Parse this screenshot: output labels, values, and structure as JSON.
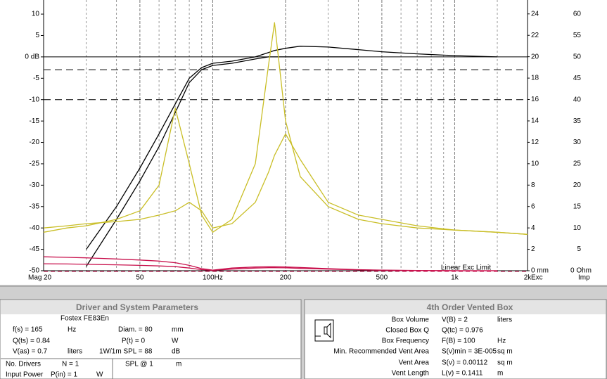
{
  "chart_data": {
    "type": "line",
    "xscale": "log",
    "xlim": [
      20,
      2000
    ],
    "ylim": [
      -50,
      13.3
    ],
    "y2lim": [
      0,
      25.3
    ],
    "y3lim": [
      0,
      63.3
    ],
    "xticks": [
      20,
      50,
      {
        "value": 100,
        "label": "100Hz"
      },
      200,
      500,
      {
        "value": 1000,
        "label": "1k"
      },
      {
        "value": 2000,
        "label": "2k"
      }
    ],
    "minor_xticks": [
      30,
      40,
      60,
      70,
      80,
      90,
      300,
      400,
      600,
      700,
      800,
      900,
      1500
    ],
    "yticks": [
      10,
      5,
      {
        "value": 0,
        "label": "0 dB"
      },
      -5,
      -10,
      -15,
      -20,
      -25,
      -30,
      -35,
      -40,
      -45,
      -50
    ],
    "y2ticks": [
      {
        "value": 0,
        "label": "0 mm"
      },
      2,
      4,
      6,
      8,
      10,
      12,
      14,
      16,
      18,
      20,
      22,
      24
    ],
    "y3ticks": [
      {
        "value": 0,
        "label": "0 Ohm"
      },
      5,
      10,
      15,
      20,
      25,
      30,
      35,
      40,
      45,
      50,
      55,
      60
    ],
    "ylabel": "Mag",
    "y2label": "Exc",
    "y3label": "Imp",
    "ref_lines": [
      -3,
      -10
    ],
    "exc_limit": {
      "value": 0,
      "label": "Linear Exc Limit",
      "color": "#c8104c"
    },
    "x": [
      20,
      25,
      30,
      40,
      50,
      60,
      70,
      80,
      90,
      100,
      120,
      150,
      170,
      180,
      200,
      230,
      300,
      400,
      500,
      700,
      1000,
      1500,
      2000
    ],
    "series": [
      {
        "color": "#000000",
        "axis": "y",
        "values": [
          null,
          null,
          -45,
          -35,
          -26,
          -18,
          -11,
          -5,
          -2.5,
          -1.5,
          -1,
          0,
          1,
          1.5,
          2,
          2.5,
          2.3,
          1.7,
          1.2,
          0.7,
          0.3,
          0,
          null
        ]
      },
      {
        "color": "#000000",
        "axis": "y",
        "values": [
          null,
          null,
          -49,
          -38,
          -29,
          -21,
          -13,
          -6,
          -3,
          -2,
          -1.5,
          -0.5,
          0,
          0,
          0,
          0,
          0,
          0,
          null,
          null,
          null,
          null,
          null
        ]
      },
      {
        "color": "#c9be26",
        "axis": "y3",
        "values": [
          9,
          10,
          10.5,
          12,
          14,
          20,
          38,
          25,
          13,
          9,
          12,
          25,
          48,
          58,
          35,
          22,
          15,
          12,
          11,
          10,
          9.5,
          9,
          8.5
        ]
      },
      {
        "color": "#c9be26",
        "axis": "y3",
        "values": [
          10,
          10.5,
          11,
          11.5,
          12,
          13,
          14,
          16,
          14,
          10,
          11,
          16,
          23,
          27,
          32,
          26,
          16,
          13,
          12,
          10.5,
          9.5,
          9,
          8.5
        ]
      },
      {
        "color": "#c8104c",
        "axis": "y2",
        "values": [
          1.3,
          1.25,
          1.2,
          1.1,
          1.0,
          0.9,
          0.75,
          0.5,
          0.2,
          0.05,
          0.25,
          0.35,
          0.37,
          0.37,
          0.35,
          0.3,
          0.2,
          0.1,
          0.05,
          0.02,
          0,
          0,
          null
        ]
      },
      {
        "color": "#c8104c",
        "axis": "y2",
        "values": [
          0.65,
          0.63,
          0.6,
          0.55,
          0.5,
          0.45,
          0.38,
          0.25,
          0.1,
          0.03,
          0.15,
          0.25,
          0.28,
          0.28,
          0.27,
          0.22,
          0.15,
          0.08,
          0.04,
          0.01,
          0,
          0,
          null
        ]
      }
    ]
  },
  "left_panel": {
    "title": "Driver and System Parameters",
    "driver": "Fostex  FE83En",
    "rows": [
      [
        "f(s) = 165",
        "Hz",
        "Diam. = 80",
        "mm"
      ],
      [
        "Q(ts) = 0.84",
        "P(t) = 0",
        "W"
      ],
      [
        "V(as) = 0.7",
        "liters",
        "1W/1m SPL = 88",
        "dB"
      ]
    ],
    "drivers_label": "No. Drivers",
    "drivers_value": "N = 1",
    "spl_label": "SPL @ 1",
    "spl_unit": "m",
    "power_label": "Input Power",
    "power_value": "P(in) = 1",
    "power_unit": "W"
  },
  "right_panel": {
    "title": "4th Order Vented Box",
    "rows": [
      [
        "Box Volume",
        "V(B) = 2",
        "liters"
      ],
      [
        "Closed Box Q",
        "Q(tc) = 0.976"
      ],
      [
        "Box Frequency",
        "F(B) = 100",
        "Hz"
      ],
      [
        "Min. Recommended Vent Area",
        "S(v)min = 3E-005",
        "sq m"
      ],
      [
        "Vent Area",
        "S(v) = 0.00112",
        "sq m"
      ],
      [
        "Vent Length",
        "L(v) = 0.1411",
        "m"
      ]
    ]
  }
}
